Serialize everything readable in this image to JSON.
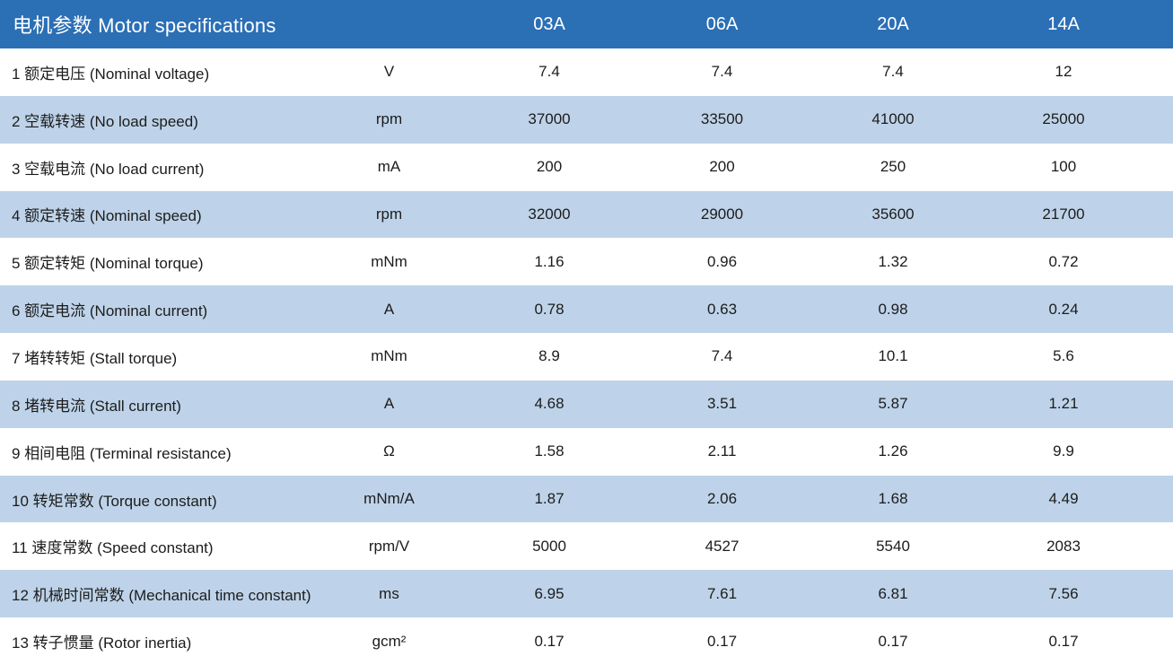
{
  "colors": {
    "header_bg": "#2B6FB5",
    "row_alt_bg": "#BED3E9",
    "header_text": "#FFFFFF",
    "body_text": "#1C1C1C"
  },
  "table": {
    "title": "电机参数 Motor specifications",
    "columns": [
      "03A",
      "06A",
      "20A",
      "14A"
    ],
    "unit_column_header": "",
    "rows": [
      {
        "label": "1 额定电压 (Nominal voltage)",
        "unit": "V",
        "values": [
          "7.4",
          "7.4",
          "7.4",
          "12"
        ]
      },
      {
        "label": "2 空载转速 (No load speed)",
        "unit": "rpm",
        "values": [
          "37000",
          "33500",
          "41000",
          "25000"
        ]
      },
      {
        "label": "3 空载电流 (No load current)",
        "unit": "mA",
        "values": [
          "200",
          "200",
          "250",
          "100"
        ]
      },
      {
        "label": "4 额定转速 (Nominal speed)",
        "unit": "rpm",
        "values": [
          "32000",
          "29000",
          "35600",
          "21700"
        ]
      },
      {
        "label": "5 额定转矩 (Nominal torque)",
        "unit": "mNm",
        "values": [
          "1.16",
          "0.96",
          "1.32",
          "0.72"
        ]
      },
      {
        "label": "6 额定电流 (Nominal current)",
        "unit": "A",
        "values": [
          "0.78",
          "0.63",
          "0.98",
          "0.24"
        ]
      },
      {
        "label": "7 堵转转矩 (Stall torque)",
        "unit": "mNm",
        "values": [
          "8.9",
          "7.4",
          "10.1",
          "5.6"
        ]
      },
      {
        "label": "8 堵转电流 (Stall current)",
        "unit": "A",
        "values": [
          "4.68",
          "3.51",
          "5.87",
          "1.21"
        ]
      },
      {
        "label": "9 相间电阻 (Terminal resistance)",
        "unit": "Ω",
        "values": [
          "1.58",
          "2.11",
          "1.26",
          "9.9"
        ]
      },
      {
        "label": "10 转矩常数 (Torque constant)",
        "unit": "mNm/A",
        "values": [
          "1.87",
          "2.06",
          "1.68",
          "4.49"
        ]
      },
      {
        "label": "11 速度常数 (Speed constant)",
        "unit": "rpm/V",
        "values": [
          "5000",
          "4527",
          "5540",
          "2083"
        ]
      },
      {
        "label": "12 机械时间常数 (Mechanical time constant)",
        "unit": "ms",
        "values": [
          "6.95",
          "7.61",
          "6.81",
          "7.56"
        ]
      },
      {
        "label": "13 转子惯量 (Rotor inertia)",
        "unit": "gcm²",
        "values": [
          "0.17",
          "0.17",
          "0.17",
          "0.17"
        ]
      }
    ]
  }
}
